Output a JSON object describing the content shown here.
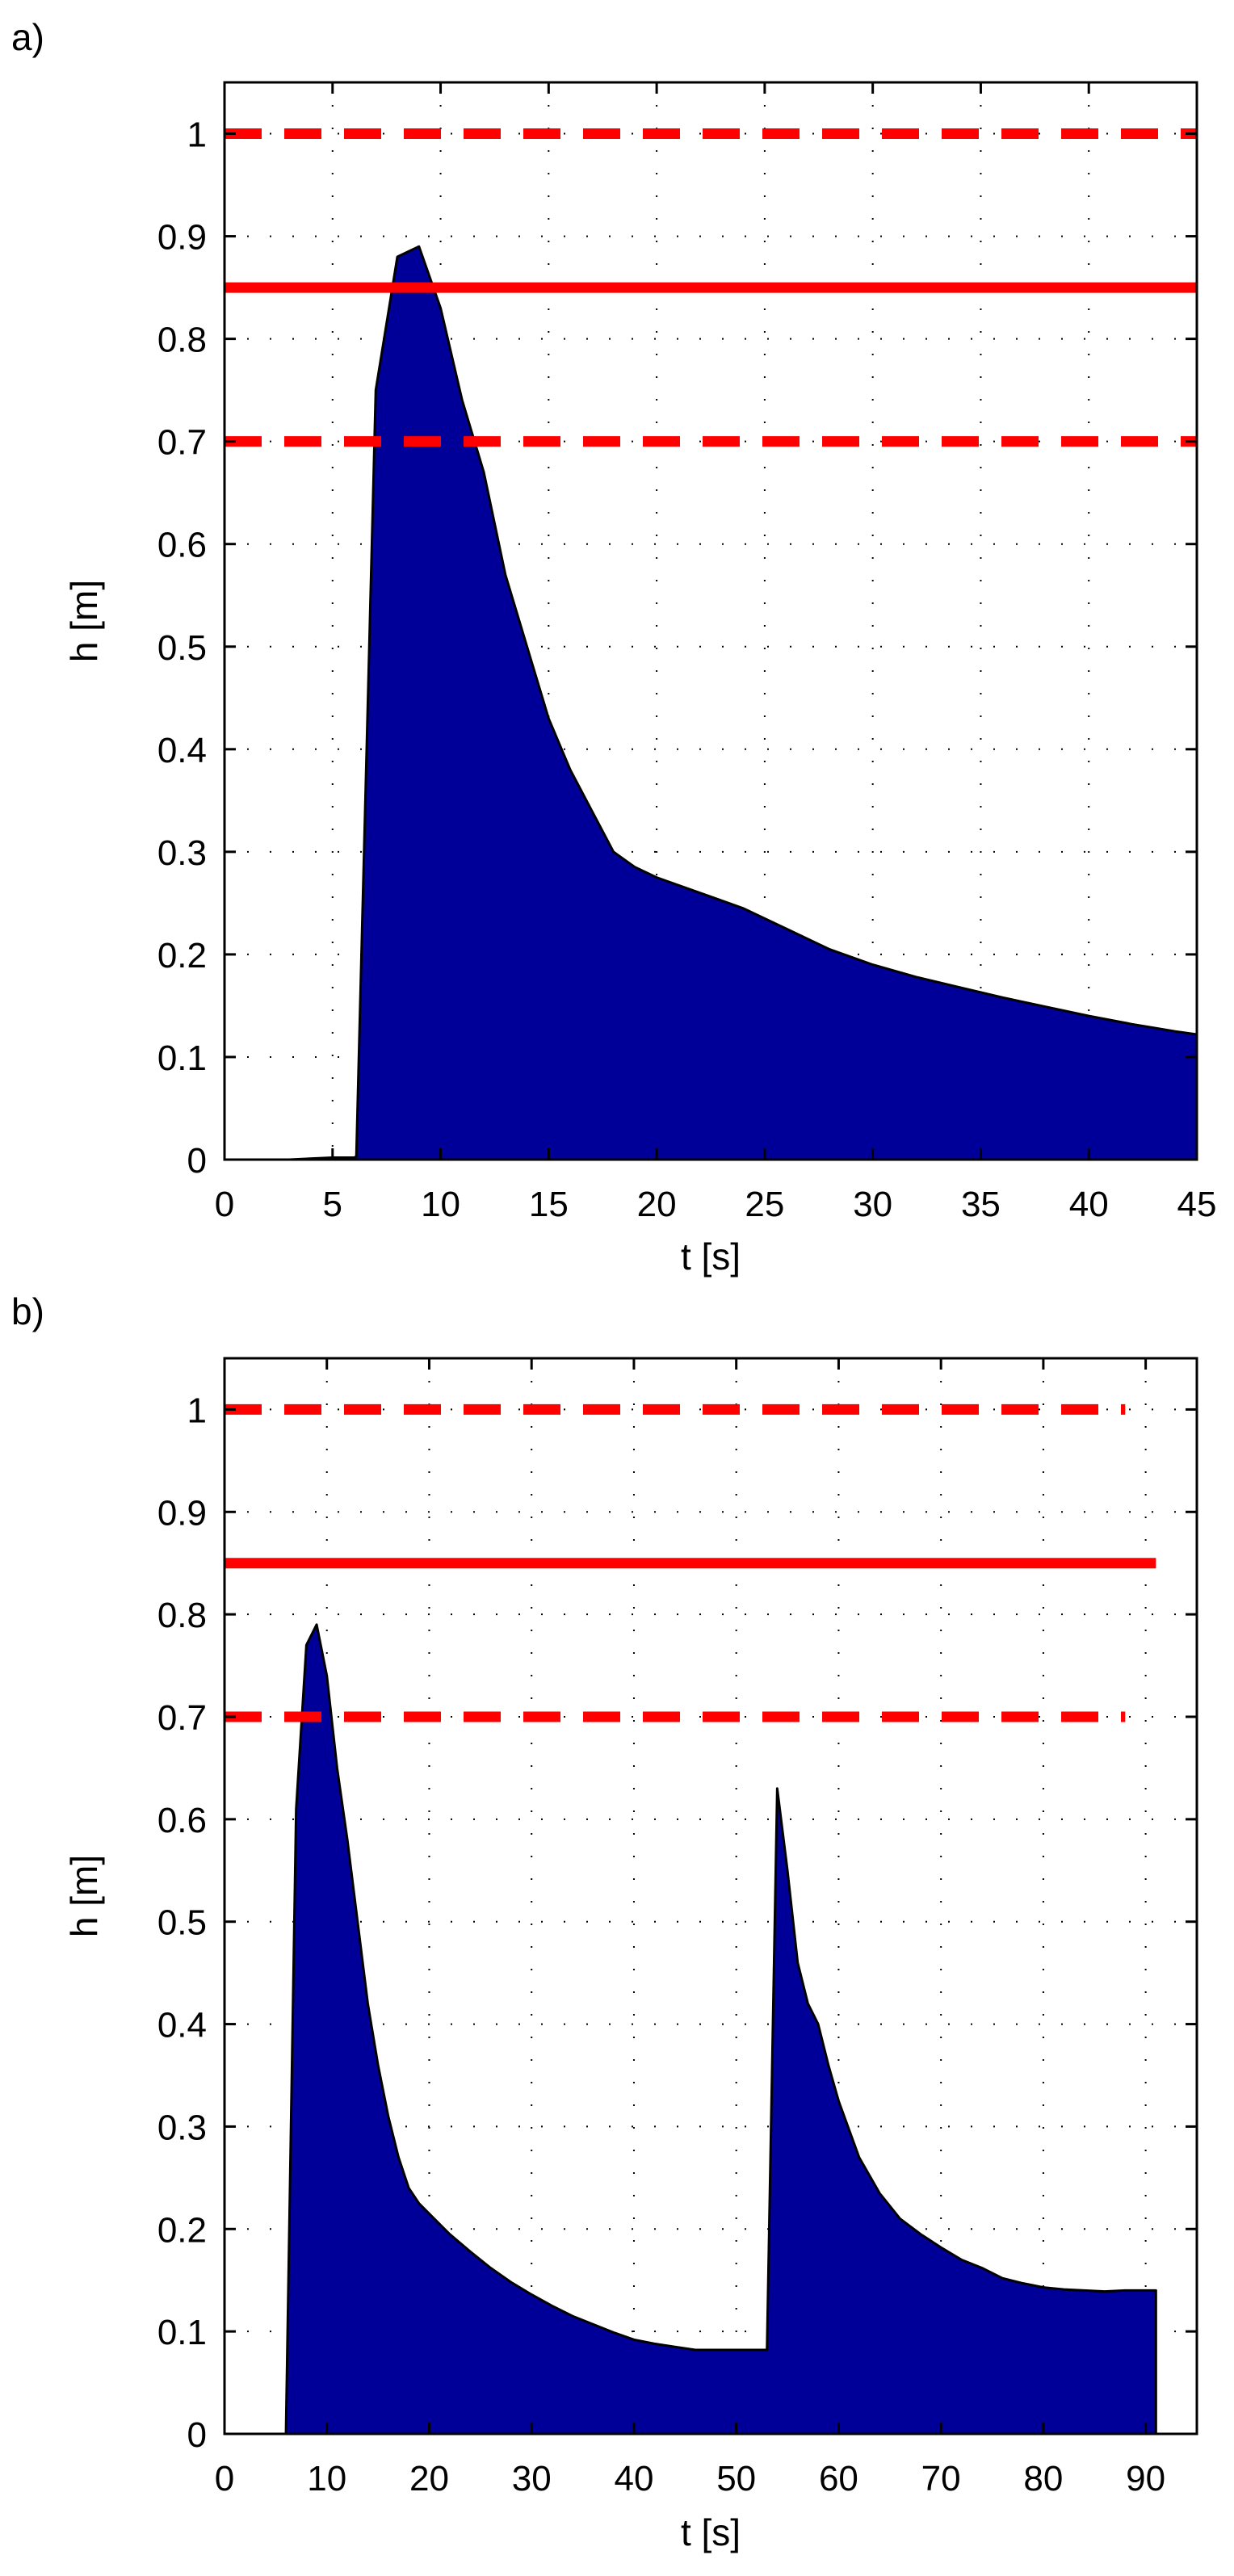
{
  "colors": {
    "fill": "#000099",
    "outline": "#000000",
    "reference_lines": "#ff0000",
    "grid": "#000000",
    "axes": "#000000"
  },
  "chart_data": [
    {
      "type": "area",
      "panel_label": "a)",
      "title": "",
      "xlabel": "t [s]",
      "ylabel": "h [m]",
      "xlim": [
        0,
        45
      ],
      "ylim": [
        0,
        1.05
      ],
      "xticks": [
        0,
        5,
        10,
        15,
        20,
        25,
        30,
        35,
        40,
        45
      ],
      "yticks": [
        0,
        0.1,
        0.2,
        0.3,
        0.4,
        0.5,
        0.6,
        0.7,
        0.8,
        0.9,
        1
      ],
      "ytick_labels": [
        "0",
        "0.1",
        "0.2",
        "0.3",
        "0.4",
        "0.5",
        "0.6",
        "0.7",
        "0.8",
        "0.9",
        "1"
      ],
      "grid": "dotted",
      "legend": "none",
      "series": [
        {
          "x": [
            0,
            3,
            5,
            6,
            6.1,
            7,
            8,
            9,
            10,
            11,
            12,
            13,
            14,
            15,
            16,
            17,
            18,
            19,
            20,
            22,
            24,
            26,
            28,
            30,
            32,
            34,
            36,
            38,
            40,
            42,
            44,
            45
          ],
          "y": [
            0,
            0,
            0.002,
            0.002,
            0.003,
            0.75,
            0.88,
            0.89,
            0.83,
            0.74,
            0.67,
            0.57,
            0.5,
            0.43,
            0.38,
            0.34,
            0.3,
            0.285,
            0.275,
            0.26,
            0.245,
            0.225,
            0.205,
            0.19,
            0.178,
            0.168,
            0.158,
            0.149,
            0.14,
            0.132,
            0.125,
            0.122
          ]
        }
      ],
      "reference_lines": [
        {
          "y": 1.0,
          "style": "dashed",
          "x_range": [
            0,
            45
          ]
        },
        {
          "y": 0.85,
          "style": "solid",
          "x_range": [
            0,
            45
          ]
        },
        {
          "y": 0.7,
          "style": "dashed",
          "x_range": [
            0,
            45
          ]
        }
      ]
    },
    {
      "type": "area",
      "panel_label": "b)",
      "title": "",
      "xlabel": "t [s]",
      "ylabel": "h [m]",
      "xlim": [
        0,
        95
      ],
      "ylim": [
        0,
        1.05
      ],
      "xticks": [
        0,
        10,
        20,
        30,
        40,
        50,
        60,
        70,
        80,
        90
      ],
      "yticks": [
        0,
        0.1,
        0.2,
        0.3,
        0.4,
        0.5,
        0.6,
        0.7,
        0.8,
        0.9,
        1
      ],
      "ytick_labels": [
        "0",
        "0.1",
        "0.2",
        "0.3",
        "0.4",
        "0.5",
        "0.6",
        "0.7",
        "0.8",
        "0.9",
        "1"
      ],
      "grid": "dotted",
      "legend": "none",
      "series": [
        {
          "x": [
            6,
            7,
            8,
            9,
            10,
            11,
            12,
            13,
            14,
            15,
            16,
            17,
            18,
            19,
            20,
            22,
            24,
            26,
            28,
            30,
            32,
            34,
            36,
            38,
            40,
            42,
            44,
            46,
            48,
            50,
            52,
            53,
            54,
            55,
            56,
            57,
            58,
            59,
            60,
            62,
            64,
            66,
            68,
            70,
            72,
            74,
            76,
            78,
            80,
            82,
            84,
            86,
            88,
            90,
            91
          ],
          "y": [
            0,
            0.61,
            0.77,
            0.79,
            0.74,
            0.65,
            0.58,
            0.5,
            0.42,
            0.36,
            0.31,
            0.27,
            0.24,
            0.225,
            0.215,
            0.195,
            0.178,
            0.162,
            0.148,
            0.136,
            0.125,
            0.115,
            0.107,
            0.099,
            0.092,
            0.088,
            0.085,
            0.082,
            0.082,
            0.082,
            0.082,
            0.082,
            0.63,
            0.55,
            0.46,
            0.42,
            0.4,
            0.36,
            0.325,
            0.27,
            0.235,
            0.21,
            0.195,
            0.182,
            0.17,
            0.162,
            0.152,
            0.147,
            0.143,
            0.141,
            0.14,
            0.139,
            0.14,
            0.14,
            0.14
          ]
        }
      ],
      "reference_lines": [
        {
          "y": 1.0,
          "style": "dashed",
          "x_range": [
            0,
            88
          ]
        },
        {
          "y": 0.85,
          "style": "solid",
          "x_range": [
            0,
            91
          ]
        },
        {
          "y": 0.7,
          "style": "dashed",
          "x_range": [
            0,
            88
          ]
        }
      ]
    }
  ]
}
